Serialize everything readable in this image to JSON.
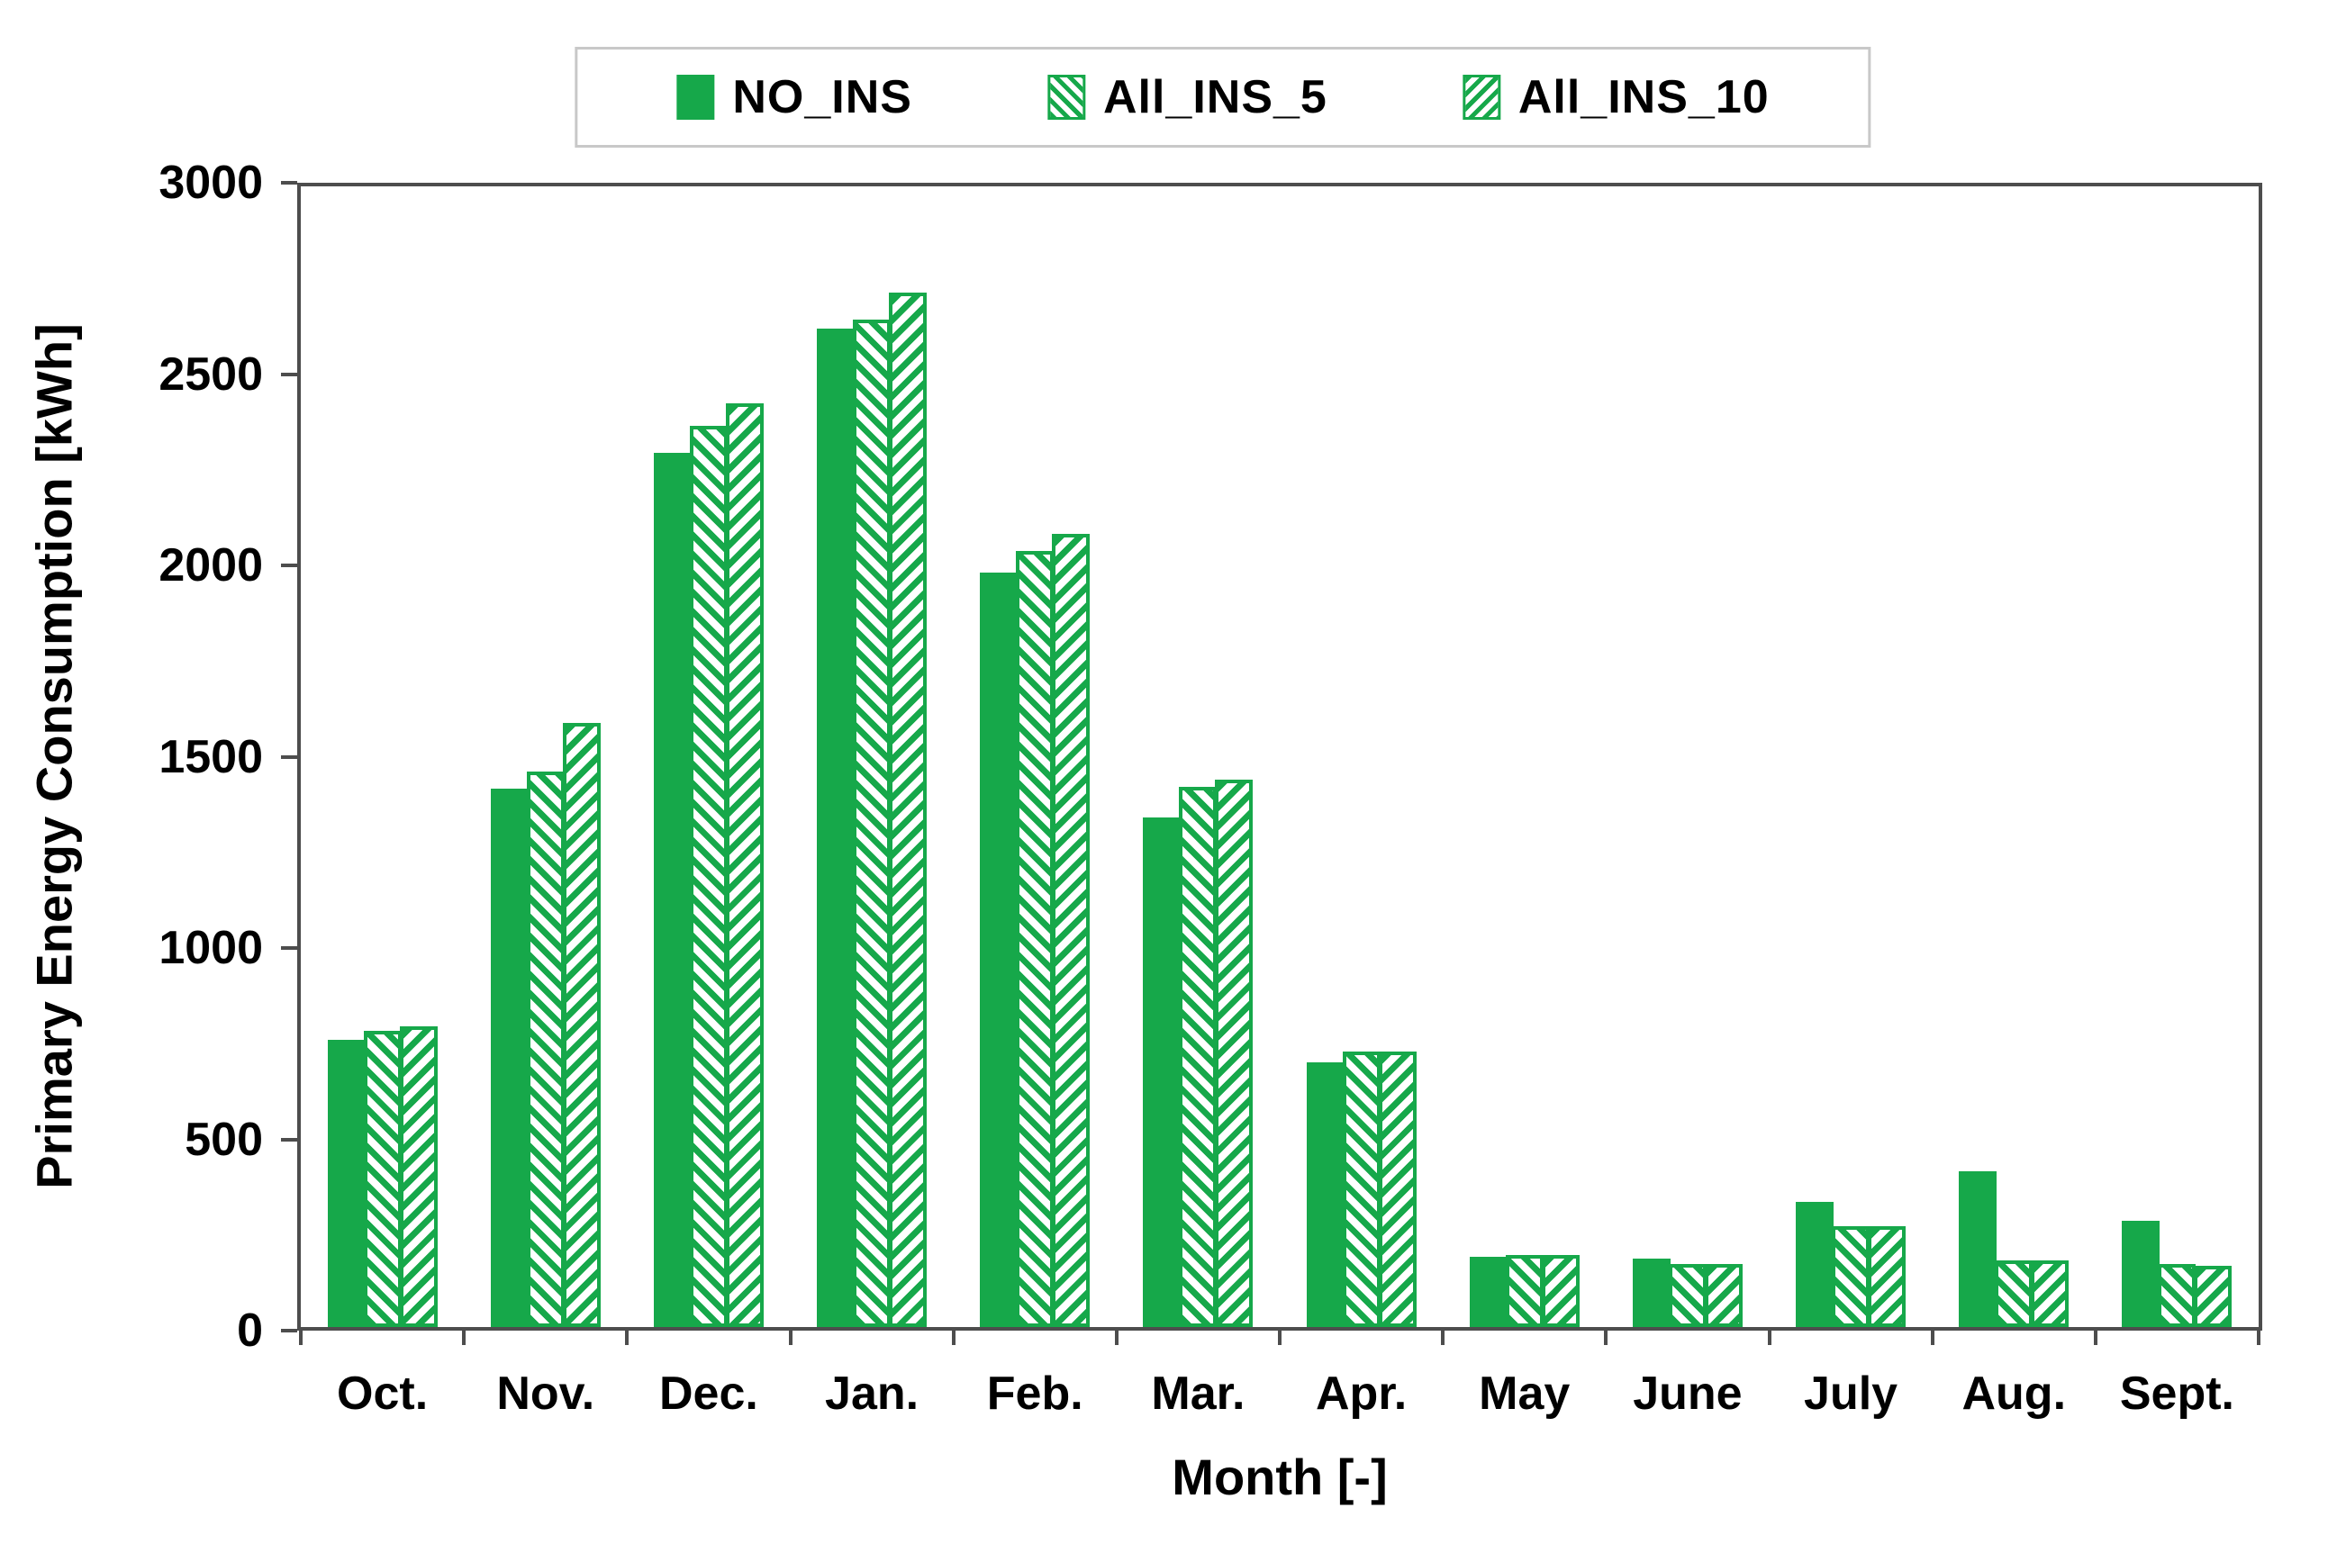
{
  "colors": {
    "bar_green": "#16a84a",
    "axis_frame": "#4d4d4d",
    "legend_border": "#c8c8c8",
    "text": "#000000"
  },
  "chart_data": {
    "type": "bar",
    "title": "",
    "xlabel": "Month [-]",
    "ylabel": "Primary Energy Consumption [kWh]",
    "categories": [
      "Oct.",
      "Nov.",
      "Dec.",
      "Jan.",
      "Feb.",
      "Mar.",
      "Apr.",
      "May",
      "June",
      "July",
      "Aug.",
      "Sept."
    ],
    "series": [
      {
        "name": "NO_INS",
        "pattern": "solid",
        "values": [
          755,
          1415,
          2300,
          2625,
          1985,
          1340,
          695,
          185,
          180,
          330,
          410,
          280
        ]
      },
      {
        "name": "All_INS_5",
        "pattern": "hatch-backslash",
        "values": [
          780,
          1460,
          2370,
          2650,
          2040,
          1420,
          725,
          190,
          165,
          265,
          175,
          165
        ]
      },
      {
        "name": "All_INS_10",
        "pattern": "hatch-slash",
        "values": [
          790,
          1590,
          2430,
          2720,
          2085,
          1440,
          725,
          190,
          165,
          265,
          175,
          160
        ]
      }
    ],
    "ylim": [
      0,
      3000
    ],
    "ytick_step": 500,
    "grid": false,
    "legend_position": "top-center"
  }
}
